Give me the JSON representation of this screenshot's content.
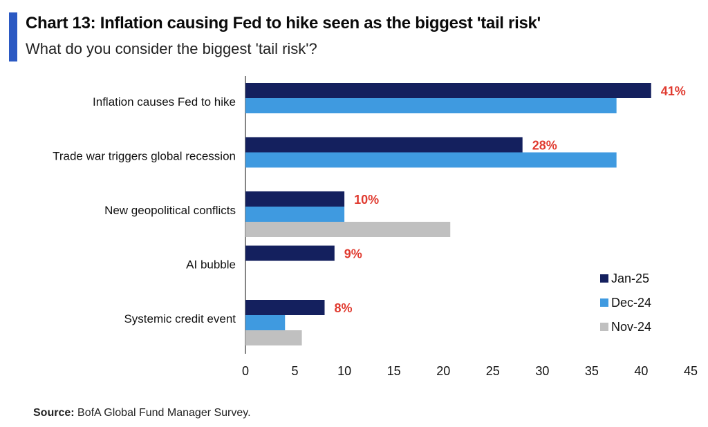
{
  "header": {
    "title": "Chart 13: Inflation causing Fed to hike seen as the biggest 'tail risk'",
    "subtitle": "What do you consider the biggest 'tail risk'?"
  },
  "footer": {
    "source_label": "Source:",
    "source_text": "BofA Global Fund Manager Survey."
  },
  "chart_data": {
    "type": "bar",
    "orientation": "horizontal",
    "categories": [
      "Inflation causes Fed to hike",
      "Trade war triggers global recession",
      "New geopolitical conflicts",
      "AI bubble",
      "Systemic credit event"
    ],
    "series": [
      {
        "name": "Jan-25",
        "color": "#14205e",
        "values": [
          41,
          28,
          10,
          9,
          8
        ]
      },
      {
        "name": "Dec-24",
        "color": "#3f9ae0",
        "values": [
          37.5,
          37.5,
          10,
          null,
          4
        ]
      },
      {
        "name": "Nov-24",
        "color": "#c0c0c0",
        "values": [
          null,
          null,
          20.7,
          null,
          5.7
        ]
      }
    ],
    "data_labels": [
      "41%",
      "28%",
      "10%",
      "9%",
      "8%"
    ],
    "data_label_color": "#e03a2f",
    "xlim": [
      0,
      45
    ],
    "xticks": [
      0,
      5,
      10,
      15,
      20,
      25,
      30,
      35,
      40,
      45
    ],
    "legend_position": "bottom-right",
    "grid": false
  }
}
